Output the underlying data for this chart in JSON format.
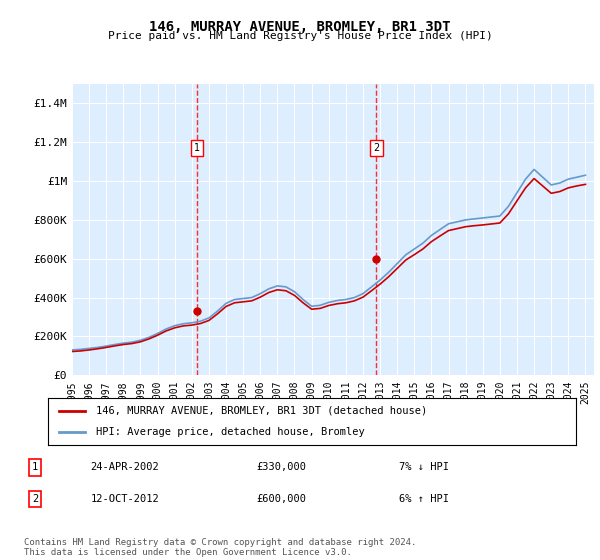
{
  "title": "146, MURRAY AVENUE, BROMLEY, BR1 3DT",
  "subtitle": "Price paid vs. HM Land Registry's House Price Index (HPI)",
  "hpi_label": "HPI: Average price, detached house, Bromley",
  "property_label": "146, MURRAY AVENUE, BROMLEY, BR1 3DT (detached house)",
  "footer": "Contains HM Land Registry data © Crown copyright and database right 2024.\nThis data is licensed under the Open Government Licence v3.0.",
  "property_color": "#cc0000",
  "hpi_color": "#6699cc",
  "background_color": "#ddeeff",
  "transactions": [
    {
      "id": 1,
      "date": "24-APR-2002",
      "price": 330000,
      "hpi_diff": "7% ↓ HPI",
      "year": 2002.31
    },
    {
      "id": 2,
      "date": "12-OCT-2012",
      "price": 600000,
      "hpi_diff": "6% ↑ HPI",
      "year": 2012.79
    }
  ],
  "ylim": [
    0,
    1500000
  ],
  "yticks": [
    0,
    200000,
    400000,
    600000,
    800000,
    1000000,
    1200000,
    1400000
  ],
  "xlim_start": 1995.0,
  "xlim_end": 2025.5,
  "hpi_data_x": [
    1995,
    1995.5,
    1996,
    1996.5,
    1997,
    1997.5,
    1998,
    1998.5,
    1999,
    1999.5,
    2000,
    2000.5,
    2001,
    2001.5,
    2002,
    2002.5,
    2003,
    2003.5,
    2004,
    2004.5,
    2005,
    2005.5,
    2006,
    2006.5,
    2007,
    2007.5,
    2008,
    2008.5,
    2009,
    2009.5,
    2010,
    2010.5,
    2011,
    2011.5,
    2012,
    2012.5,
    2013,
    2013.5,
    2014,
    2014.5,
    2015,
    2015.5,
    2016,
    2016.5,
    2017,
    2017.5,
    2018,
    2018.5,
    2019,
    2019.5,
    2020,
    2020.5,
    2021,
    2021.5,
    2022,
    2022.5,
    2023,
    2023.5,
    2024,
    2024.5,
    2025
  ],
  "hpi_data_y": [
    130000,
    133000,
    138000,
    143000,
    150000,
    158000,
    165000,
    170000,
    180000,
    195000,
    215000,
    238000,
    255000,
    265000,
    270000,
    278000,
    295000,
    330000,
    370000,
    390000,
    395000,
    400000,
    420000,
    445000,
    460000,
    455000,
    430000,
    390000,
    355000,
    360000,
    375000,
    385000,
    390000,
    400000,
    420000,
    455000,
    490000,
    530000,
    575000,
    620000,
    650000,
    680000,
    720000,
    750000,
    780000,
    790000,
    800000,
    805000,
    810000,
    815000,
    820000,
    870000,
    940000,
    1010000,
    1060000,
    1020000,
    980000,
    990000,
    1010000,
    1020000,
    1030000
  ],
  "property_data_x": [
    1995,
    1995.5,
    1996,
    1996.5,
    1997,
    1997.5,
    1998,
    1998.5,
    1999,
    1999.5,
    2000,
    2000.5,
    2001,
    2001.5,
    2002,
    2002.5,
    2003,
    2003.5,
    2004,
    2004.5,
    2005,
    2005.5,
    2006,
    2006.5,
    2007,
    2007.5,
    2008,
    2008.5,
    2009,
    2009.5,
    2010,
    2010.5,
    2011,
    2011.5,
    2012,
    2012.5,
    2013,
    2013.5,
    2014,
    2014.5,
    2015,
    2015.5,
    2016,
    2016.5,
    2017,
    2017.5,
    2018,
    2018.5,
    2019,
    2019.5,
    2020,
    2020.5,
    2021,
    2021.5,
    2022,
    2022.5,
    2023,
    2023.5,
    2024,
    2024.5,
    2025
  ],
  "property_data_y": [
    122000,
    125000,
    130000,
    136000,
    143000,
    151000,
    158000,
    163000,
    172000,
    187000,
    206000,
    228000,
    244000,
    254000,
    258000,
    266000,
    282000,
    316000,
    354000,
    373000,
    378000,
    383000,
    402000,
    426000,
    440000,
    435000,
    411000,
    373000,
    340000,
    344000,
    359000,
    368000,
    373000,
    383000,
    402000,
    435000,
    469000,
    507000,
    550000,
    593000,
    621000,
    650000,
    688000,
    717000,
    745000,
    755000,
    765000,
    770000,
    774000,
    779000,
    784000,
    831000,
    898000,
    965000,
    1013000,
    975000,
    937000,
    946000,
    965000,
    975000,
    983000
  ],
  "xtick_years": [
    1995,
    1996,
    1997,
    1998,
    1999,
    2000,
    2001,
    2002,
    2003,
    2004,
    2005,
    2006,
    2007,
    2008,
    2009,
    2010,
    2011,
    2012,
    2013,
    2014,
    2015,
    2016,
    2017,
    2018,
    2019,
    2020,
    2021,
    2022,
    2023,
    2024,
    2025
  ]
}
